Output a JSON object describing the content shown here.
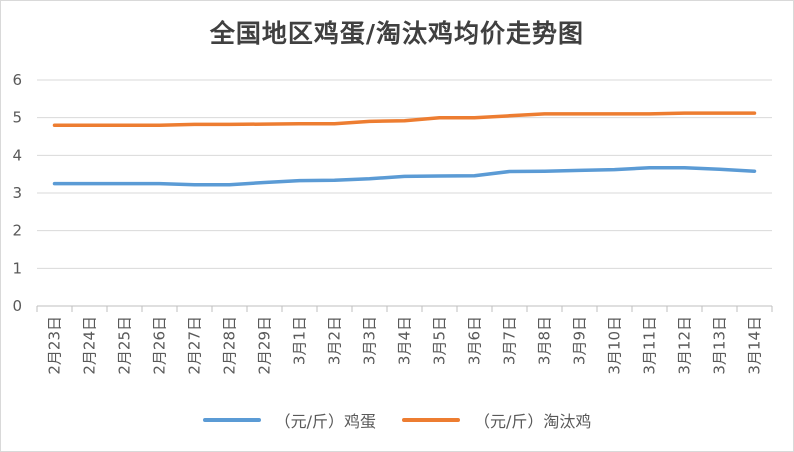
{
  "chart_data": {
    "type": "line",
    "title": "全国地区鸡蛋/淘汰鸡均价走势图",
    "xlabel": "",
    "ylabel": "",
    "ylim": [
      0,
      6
    ],
    "yticks": [
      "0",
      "1",
      "2",
      "3",
      "4",
      "5",
      "6"
    ],
    "grid": true,
    "legend_position": "bottom",
    "categories": [
      "2月23日",
      "2月24日",
      "2月25日",
      "2月26日",
      "2月27日",
      "2月28日",
      "2月29日",
      "3月1日",
      "3月2日",
      "3月3日",
      "3月4日",
      "3月5日",
      "3月6日",
      "3月7日",
      "3月8日",
      "3月9日",
      "3月10日",
      "3月11日",
      "3月12日",
      "3月13日",
      "3月14日"
    ],
    "series": [
      {
        "name": "（元/斤）鸡蛋",
        "color": "#5b9bd5",
        "values": [
          3.25,
          3.25,
          3.25,
          3.25,
          3.22,
          3.22,
          3.28,
          3.33,
          3.34,
          3.38,
          3.44,
          3.45,
          3.46,
          3.57,
          3.58,
          3.6,
          3.62,
          3.67,
          3.67,
          3.63,
          3.58
        ]
      },
      {
        "name": "（元/斤）淘汰鸡",
        "color": "#ed7d31",
        "values": [
          4.8,
          4.8,
          4.8,
          4.8,
          4.82,
          4.82,
          4.83,
          4.84,
          4.84,
          4.9,
          4.92,
          5.0,
          5.0,
          5.05,
          5.1,
          5.1,
          5.1,
          5.1,
          5.12,
          5.12,
          5.12
        ]
      }
    ]
  }
}
